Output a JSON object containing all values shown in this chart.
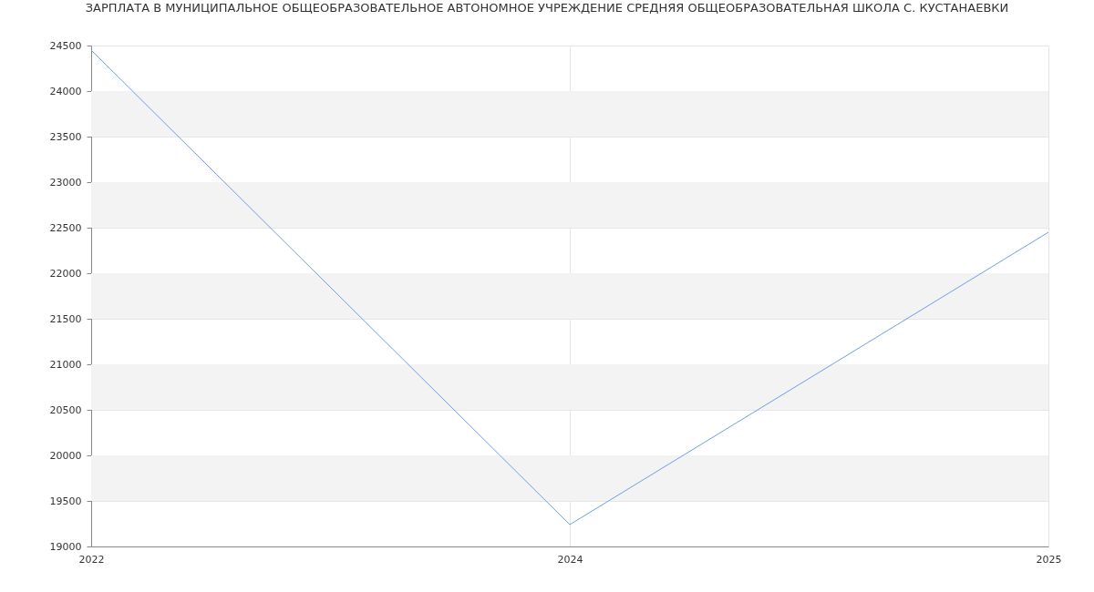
{
  "chart_data": {
    "type": "line",
    "title": "ЗАРПЛАТА В МУНИЦИПАЛЬНОЕ ОБЩЕОБРАЗОВАТЕЛЬНОЕ АВТОНОМНОЕ УЧРЕЖДЕНИЕ СРЕДНЯЯ ОБЩЕОБРАЗОВАТЕЛЬНАЯ ШКОЛА С. КУСТАНАЕВКИ",
    "categories": [
      "2022",
      "2024",
      "2025"
    ],
    "series": [
      {
        "color": "#6d9eeb",
        "values": [
          24450,
          19240,
          22450
        ]
      }
    ],
    "ylim": [
      19000,
      24500
    ],
    "yticks": [
      19000,
      19500,
      20000,
      20500,
      21000,
      21500,
      22000,
      22500,
      23000,
      23500,
      24000,
      24500
    ],
    "grid": true,
    "line_style": "solid"
  }
}
